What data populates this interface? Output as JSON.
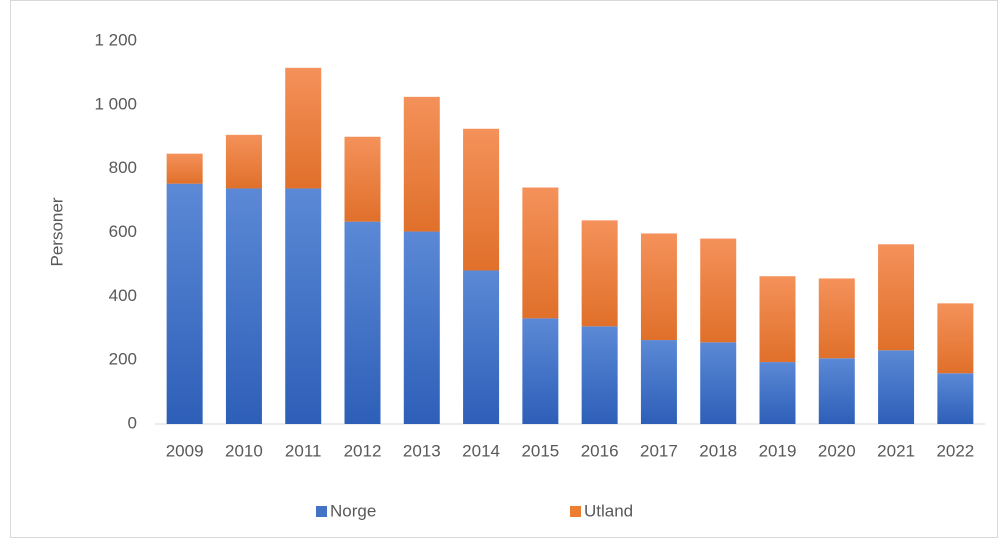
{
  "chart_data": {
    "type": "stacked_bar",
    "y_label": "Personer",
    "categories": [
      "2009",
      "2010",
      "2011",
      "2012",
      "2013",
      "2014",
      "2015",
      "2016",
      "2017",
      "2018",
      "2019",
      "2020",
      "2021",
      "2022"
    ],
    "series": [
      {
        "name": "Norge",
        "color": "#4472c4",
        "values": [
          753,
          738,
          738,
          634,
          603,
          481,
          331,
          306,
          263,
          256,
          194,
          206,
          231,
          159
        ]
      },
      {
        "name": "Utland",
        "color": "#ed7d31",
        "values": [
          94,
          168,
          378,
          266,
          422,
          444,
          410,
          332,
          334,
          325,
          269,
          250,
          332,
          219
        ]
      }
    ],
    "ylim": [
      0,
      1200
    ],
    "yticks": [
      0,
      200,
      400,
      600,
      800,
      {
        "value": 1000,
        "label": "1 000"
      },
      {
        "value": 1200,
        "label": "1 200"
      }
    ],
    "legend": "bottom"
  }
}
